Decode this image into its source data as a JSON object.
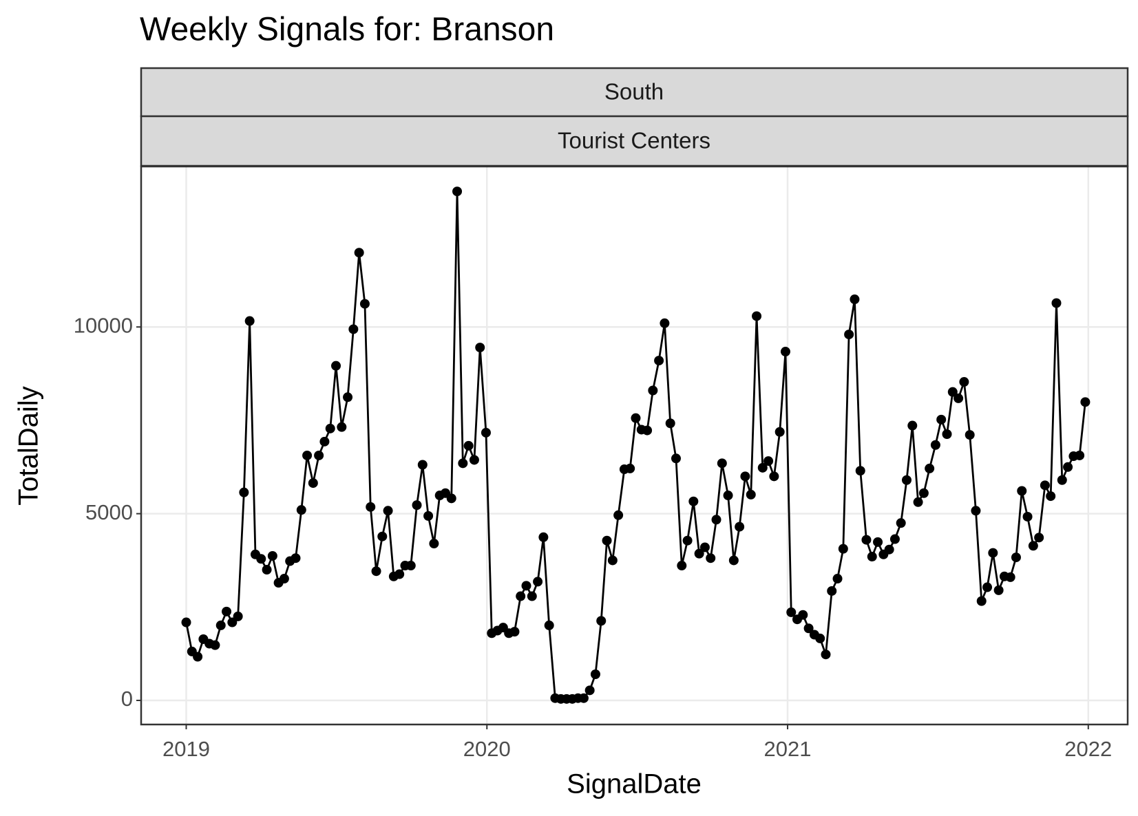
{
  "chart_data": {
    "type": "line",
    "title": "Weekly Signals for: Branson",
    "facets": [
      "South",
      "Tourist Centers"
    ],
    "xlabel": "SignalDate",
    "ylabel": "TotalDaily",
    "x": [
      2019.0,
      2019.019,
      2019.038,
      2019.057,
      2019.077,
      2019.096,
      2019.115,
      2019.134,
      2019.153,
      2019.172,
      2019.192,
      2019.211,
      2019.23,
      2019.249,
      2019.268,
      2019.287,
      2019.307,
      2019.326,
      2019.345,
      2019.364,
      2019.383,
      2019.402,
      2019.422,
      2019.441,
      2019.46,
      2019.479,
      2019.498,
      2019.517,
      2019.537,
      2019.556,
      2019.575,
      2019.594,
      2019.613,
      2019.632,
      2019.652,
      2019.671,
      2019.69,
      2019.709,
      2019.728,
      2019.747,
      2019.767,
      2019.786,
      2019.805,
      2019.824,
      2019.843,
      2019.862,
      2019.882,
      2019.901,
      2019.92,
      2019.939,
      2019.958,
      2019.977,
      2019.997,
      2020.016,
      2020.035,
      2020.054,
      2020.073,
      2020.092,
      2020.112,
      2020.131,
      2020.15,
      2020.169,
      2020.188,
      2020.207,
      2020.227,
      2020.246,
      2020.265,
      2020.284,
      2020.303,
      2020.322,
      2020.342,
      2020.361,
      2020.38,
      2020.399,
      2020.418,
      2020.437,
      2020.457,
      2020.476,
      2020.495,
      2020.514,
      2020.533,
      2020.552,
      2020.572,
      2020.591,
      2020.61,
      2020.629,
      2020.648,
      2020.667,
      2020.687,
      2020.706,
      2020.725,
      2020.744,
      2020.763,
      2020.782,
      2020.802,
      2020.821,
      2020.84,
      2020.859,
      2020.878,
      2020.897,
      2020.917,
      2020.936,
      2020.955,
      2020.974,
      2020.993,
      2021.012,
      2021.032,
      2021.051,
      2021.07,
      2021.089,
      2021.108,
      2021.127,
      2021.147,
      2021.166,
      2021.185,
      2021.204,
      2021.223,
      2021.242,
      2021.262,
      2021.281,
      2021.3,
      2021.319,
      2021.338,
      2021.357,
      2021.377,
      2021.396,
      2021.415,
      2021.434,
      2021.453,
      2021.472,
      2021.492,
      2021.511,
      2021.53,
      2021.549,
      2021.568,
      2021.587,
      2021.606,
      2021.626,
      2021.645,
      2021.664,
      2021.683,
      2021.702,
      2021.721,
      2021.741,
      2021.76,
      2021.779,
      2021.798,
      2021.817,
      2021.836,
      2021.856,
      2021.875,
      2021.894,
      2021.913,
      2021.932,
      2021.951,
      2021.971,
      2021.99
    ],
    "series": [
      {
        "name": "TotalDaily",
        "color": "#000000",
        "values": [
          2090,
          1310,
          1170,
          1640,
          1520,
          1480,
          2010,
          2380,
          2090,
          2250,
          5570,
          10160,
          3910,
          3790,
          3500,
          3870,
          3150,
          3260,
          3730,
          3810,
          5100,
          6560,
          5820,
          6560,
          6930,
          7280,
          8960,
          7320,
          8120,
          9940,
          11990,
          10620,
          5180,
          3460,
          4390,
          5080,
          3320,
          3380,
          3610,
          3610,
          5230,
          6310,
          4940,
          4200,
          5490,
          5550,
          5410,
          13630,
          6350,
          6820,
          6440,
          9450,
          7170,
          1800,
          1870,
          1950,
          1800,
          1840,
          2790,
          3070,
          2790,
          3180,
          4370,
          2010,
          60,
          40,
          40,
          40,
          60,
          60,
          270,
          700,
          2130,
          4280,
          3750,
          4960,
          6190,
          6210,
          7560,
          7250,
          7230,
          8300,
          9100,
          10100,
          7420,
          6480,
          3610,
          4280,
          5330,
          3930,
          4100,
          3810,
          4840,
          6350,
          5490,
          3750,
          4650,
          6000,
          5510,
          10290,
          6230,
          6410,
          6000,
          7190,
          9340,
          2360,
          2170,
          2290,
          1930,
          1760,
          1660,
          1230,
          2930,
          3260,
          4060,
          9800,
          10740,
          6150,
          4300,
          3850,
          4240,
          3910,
          4040,
          4320,
          4750,
          5900,
          7360,
          5310,
          5550,
          6210,
          6840,
          7520,
          7130,
          8260,
          8090,
          8530,
          7110,
          5080,
          2660,
          3030,
          3950,
          2950,
          3320,
          3300,
          3830,
          5610,
          4920,
          4140,
          4360,
          5760,
          5470,
          10640,
          5900,
          6250,
          6540,
          6560,
          7990
        ]
      }
    ],
    "xlim": [
      2018.85,
      2022.131
    ],
    "xticks": [
      2019,
      2020,
      2021,
      2022
    ],
    "ylim": [
      -645,
      14297
    ],
    "yticks": [
      0,
      5000,
      10000
    ],
    "grid": true
  }
}
